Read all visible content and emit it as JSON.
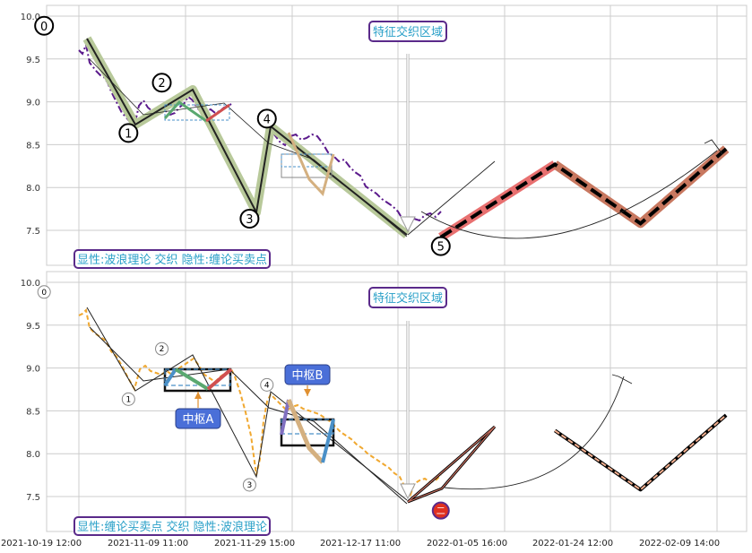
{
  "colors": {
    "grid": "#cccccc",
    "price_top": "#5b1a8c",
    "price_bottom": "#f0a830",
    "wave_highlight": "#b8c99a",
    "forecast_red": "#e87070",
    "forecast_brown": "#c87860",
    "zone_green": "#5aa870",
    "zone_blue": "#4a90c8",
    "zone_red": "#d05050",
    "zone_purple": "#8070c0",
    "zone_tan": "#d4b080",
    "legend_border": "#5a2a8a",
    "legend_text": "#2aa0c8",
    "bubble_bg": "#4a6fd8"
  },
  "chart_data": [
    {
      "type": "line",
      "panel": "top",
      "ylim": [
        7.1,
        10.1
      ],
      "y_ticks": [
        "10.0",
        "9.5",
        "9.0",
        "8.5",
        "8.0",
        "7.5"
      ],
      "wave_points": [
        {
          "label": "0",
          "x": "2021-10-20",
          "y": 9.72
        },
        {
          "label": "1",
          "x": "2021-11-03",
          "y": 8.72
        },
        {
          "label": "2",
          "x": "2021-11-09",
          "y": 9.14
        },
        {
          "label": "3",
          "x": "2021-11-25",
          "y": 7.72
        },
        {
          "label": "4",
          "x": "2021-11-26",
          "y": 8.72
        },
        {
          "label": "5",
          "x": "2021-12-26",
          "y": 7.42
        }
      ],
      "forecast": [
        {
          "x": "2021-12-26",
          "y": 7.42
        },
        {
          "x": "2022-01-15",
          "y": 8.27
        },
        {
          "x": "2022-01-30",
          "y": 7.58
        },
        {
          "x": "2022-02-14",
          "y": 8.45
        }
      ],
      "annotation": "特征交织区域",
      "legend": "显性:波浪理论 交织 隐性:缠论买卖点"
    },
    {
      "type": "line",
      "panel": "bottom",
      "ylim": [
        7.1,
        10.1
      ],
      "y_ticks": [
        "10.0",
        "9.5",
        "9.0",
        "8.5",
        "8.0",
        "7.5"
      ],
      "wave_points": [
        {
          "label": "0",
          "x": "2021-10-20",
          "y": 9.72
        },
        {
          "label": "1",
          "x": "2021-11-03",
          "y": 8.72
        },
        {
          "label": "2",
          "x": "2021-11-09",
          "y": 9.14
        },
        {
          "label": "3",
          "x": "2021-11-25",
          "y": 7.72
        },
        {
          "label": "4",
          "x": "2021-11-26",
          "y": 8.72
        },
        {
          "label": "二",
          "x": "2021-12-26",
          "y": 7.42
        }
      ],
      "zones": [
        {
          "label": "中枢A",
          "x_start": "2021-11-07",
          "x_end": "2021-11-17",
          "y_low": 8.77,
          "y_high": 8.99
        },
        {
          "label": "中枢B",
          "x_start": "2021-11-28",
          "x_end": "2021-12-06",
          "y_low": 8.13,
          "y_high": 8.4
        }
      ],
      "forecast": [
        {
          "x": "2021-12-26",
          "y": 7.42
        },
        {
          "x": "2022-01-15",
          "y": 8.27
        },
        {
          "x": "2022-01-30",
          "y": 7.58
        },
        {
          "x": "2022-02-14",
          "y": 8.45
        }
      ],
      "annotation": "特征交织区域",
      "legend": "显性:缠论买卖点 交织 隐性:波浪理论"
    }
  ],
  "x_ticks": [
    "2021-10-19 12:00",
    "2021-11-09 11:00",
    "2021-11-29 15:00",
    "2021-12-17 11:00",
    "2022-01-05 16:00",
    "2022-01-24 12:00",
    "2022-02-09 14:00"
  ]
}
